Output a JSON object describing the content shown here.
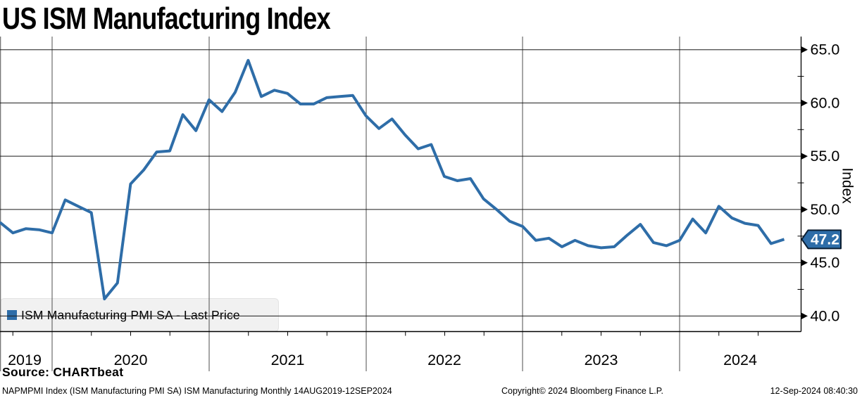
{
  "title": "US ISM Manufacturing Index",
  "source_line": "Source: CHARTbeat",
  "footer": {
    "left": "NAPMPMI Index (ISM Manufacturing PMI SA) ISM Manufacturing  Monthly 14AUG2019-12SEP2024",
    "center": "Copyright© 2024 Bloomberg Finance L.P.",
    "right": "12-Sep-2024 08:40:30"
  },
  "legend": {
    "label": "ISM Manufacturing PMI SA - Last Price",
    "marker_color": "#2e6da8"
  },
  "last_price_badge": {
    "value": "47.2",
    "fill": "#2e6da8",
    "border": "#0c1f33",
    "text_color": "#ffffff"
  },
  "y_axis_title": "Index",
  "chart_data": {
    "type": "line",
    "title": "US ISM Manufacturing Index",
    "series_name": "ISM Manufacturing PMI SA - Last Price",
    "frequency": "Monthly",
    "date_range": "14AUG2019-12SEP2024",
    "line_color": "#2e6da8",
    "grid": true,
    "axis_side": "right",
    "legend_position": "bottom-left",
    "ylabel": "Index",
    "ylim": [
      38.5,
      66.2
    ],
    "yticks": [
      65,
      60,
      55,
      50,
      45,
      40
    ],
    "ytick_labels": [
      "65.0",
      "60.0",
      "55.0",
      "50.0",
      "45.0",
      "40.0"
    ],
    "minor_yticks": [
      62.5,
      57.5,
      52.5,
      47.5,
      42.5
    ],
    "year_labels": [
      "2019",
      "2020",
      "2021",
      "2022",
      "2023",
      "2024"
    ],
    "last_value": 47.2,
    "x": [
      "2019-08",
      "2019-09",
      "2019-10",
      "2019-11",
      "2019-12",
      "2020-01",
      "2020-02",
      "2020-03",
      "2020-04",
      "2020-05",
      "2020-06",
      "2020-07",
      "2020-08",
      "2020-09",
      "2020-10",
      "2020-11",
      "2020-12",
      "2021-01",
      "2021-02",
      "2021-03",
      "2021-04",
      "2021-05",
      "2021-06",
      "2021-07",
      "2021-08",
      "2021-09",
      "2021-10",
      "2021-11",
      "2021-12",
      "2022-01",
      "2022-02",
      "2022-03",
      "2022-04",
      "2022-05",
      "2022-06",
      "2022-07",
      "2022-08",
      "2022-09",
      "2022-10",
      "2022-11",
      "2022-12",
      "2023-01",
      "2023-02",
      "2023-03",
      "2023-04",
      "2023-05",
      "2023-06",
      "2023-07",
      "2023-08",
      "2023-09",
      "2023-10",
      "2023-11",
      "2023-12",
      "2024-01",
      "2024-02",
      "2024-03",
      "2024-04",
      "2024-05",
      "2024-06",
      "2024-07",
      "2024-08"
    ],
    "values": [
      48.8,
      47.8,
      48.2,
      48.1,
      47.8,
      50.9,
      50.3,
      49.7,
      41.6,
      43.1,
      52.4,
      53.7,
      55.4,
      55.5,
      58.9,
      57.4,
      60.3,
      59.2,
      61.0,
      64.0,
      60.6,
      61.2,
      60.9,
      59.9,
      59.9,
      60.5,
      60.6,
      60.7,
      58.8,
      57.6,
      58.5,
      57.0,
      55.7,
      56.1,
      53.1,
      52.7,
      52.9,
      51.0,
      50.0,
      48.9,
      48.4,
      47.1,
      47.3,
      46.5,
      47.1,
      46.6,
      46.4,
      46.5,
      47.6,
      48.6,
      46.9,
      46.6,
      47.1,
      49.1,
      47.8,
      50.3,
      49.2,
      48.7,
      48.5,
      46.8,
      47.2
    ]
  }
}
